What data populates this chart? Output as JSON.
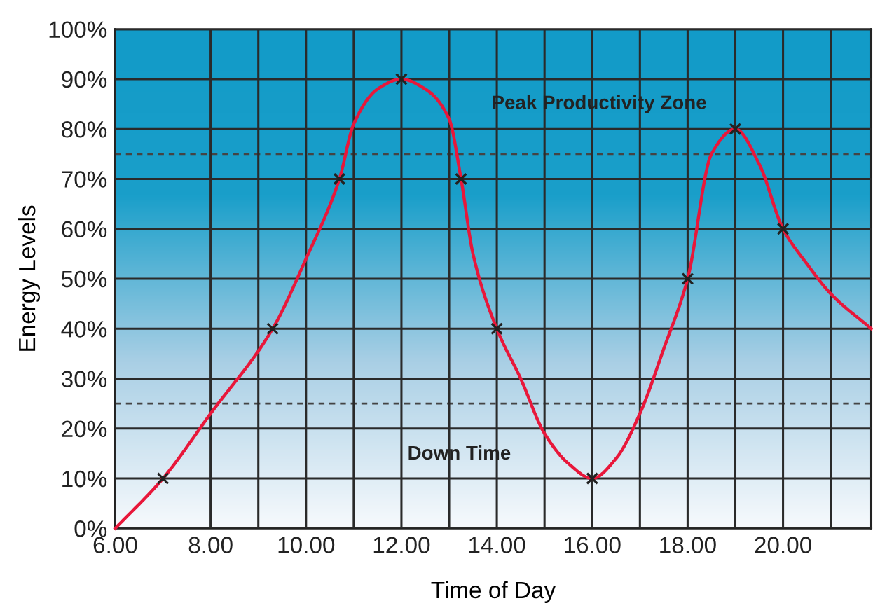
{
  "chart_data": {
    "type": "line",
    "xlabel": "Time of Day",
    "ylabel": "Energy Levels",
    "xlim": [
      6,
      21.85
    ],
    "ylim": [
      0,
      100
    ],
    "xticks": [
      {
        "value": 6,
        "label": "6.00"
      },
      {
        "value": 8,
        "label": "8.00"
      },
      {
        "value": 9,
        "label": null
      },
      {
        "value": 10,
        "label": "10.00"
      },
      {
        "value": 11,
        "label": null
      },
      {
        "value": 12,
        "label": "12.00"
      },
      {
        "value": 13,
        "label": null
      },
      {
        "value": 14,
        "label": "14.00"
      },
      {
        "value": 15,
        "label": null
      },
      {
        "value": 16,
        "label": "16.00"
      },
      {
        "value": 17,
        "label": null
      },
      {
        "value": 18,
        "label": "18.00"
      },
      {
        "value": 19,
        "label": null
      },
      {
        "value": 20,
        "label": "20.00"
      },
      {
        "value": 21,
        "label": null
      }
    ],
    "yticks": [
      {
        "value": 0,
        "label": "0%"
      },
      {
        "value": 10,
        "label": "10%"
      },
      {
        "value": 20,
        "label": "20%"
      },
      {
        "value": 30,
        "label": "30%"
      },
      {
        "value": 40,
        "label": "40%"
      },
      {
        "value": 50,
        "label": "50%"
      },
      {
        "value": 60,
        "label": "60%"
      },
      {
        "value": 70,
        "label": "70%"
      },
      {
        "value": 80,
        "label": "80%"
      },
      {
        "value": 90,
        "label": "90%"
      },
      {
        "value": 100,
        "label": "100%"
      }
    ],
    "grid": true,
    "legend": false,
    "series": [
      {
        "color": "#e8173a",
        "marker": "none",
        "line_style": "solid",
        "x": [
          6,
          7,
          8,
          9.3,
          10,
          10.7,
          11,
          11.5,
          12,
          12.5,
          13,
          13.25,
          13.5,
          14,
          14.5,
          15,
          15.5,
          16,
          16.5,
          17,
          17.5,
          18,
          18.5,
          19,
          19.5,
          20,
          20.5,
          21,
          21.85
        ],
        "values": [
          0,
          10,
          23,
          40,
          54,
          70,
          81,
          88,
          90,
          88,
          82,
          70,
          55,
          40,
          30,
          19,
          13,
          10,
          14,
          23,
          36,
          50,
          75,
          80,
          73,
          60,
          53,
          47,
          40
        ]
      },
      {
        "type": "scatter",
        "color": "#222222",
        "marker": "cross",
        "x": [
          7,
          9.3,
          10.7,
          12,
          13.25,
          14,
          16,
          18,
          19,
          20
        ],
        "values": [
          10,
          40,
          70,
          90,
          70,
          40,
          10,
          50,
          80,
          60
        ]
      }
    ],
    "ref_lines": [
      {
        "axis": "y",
        "value": 75,
        "color": "#444444",
        "line_style": "dashed"
      },
      {
        "axis": "y",
        "value": 25,
        "color": "#444444",
        "line_style": "dashed"
      }
    ],
    "annotations": [
      "Peak Productivity Zone",
      "Down Time"
    ]
  }
}
